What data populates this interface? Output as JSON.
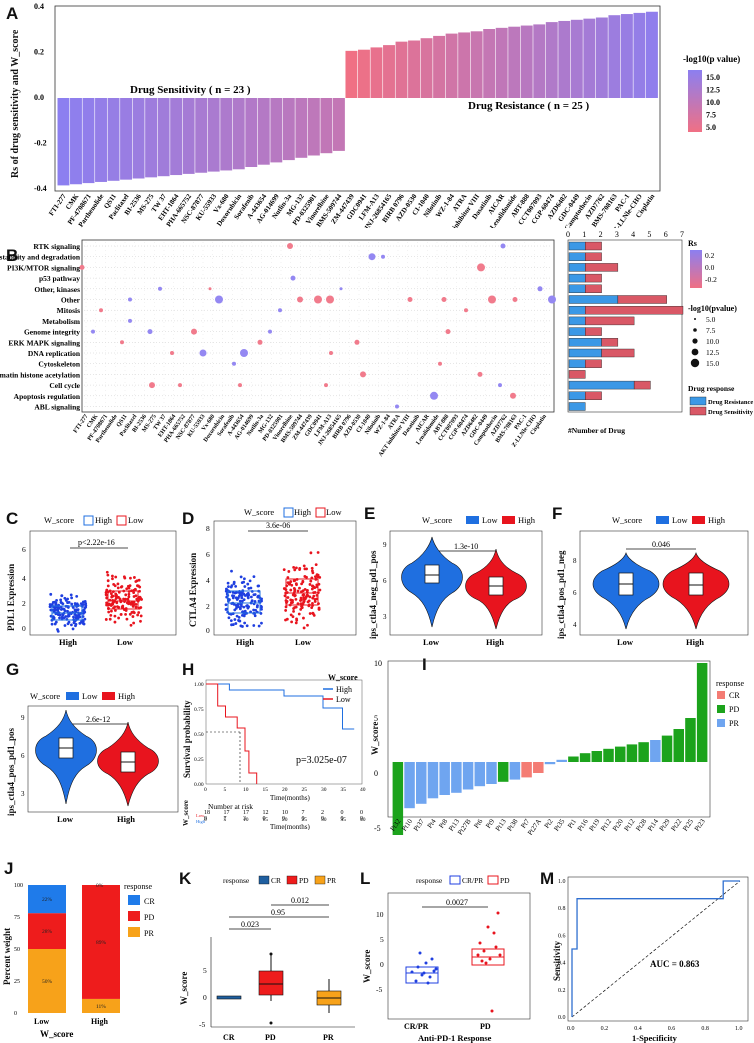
{
  "colors": {
    "sens": "#8c7ff0",
    "res": "#f07084",
    "high_blue": "#1f6fe0",
    "low_red": "#e8141e",
    "cr": "#1f7bea",
    "pd": "#ee1c1c",
    "pr": "#f7a21a",
    "green": "#1ca31c",
    "blue2": "#6fa5f0",
    "salmon": "#f47c74"
  },
  "panelA": {
    "label": "A",
    "ylabel": "Rs of drug sensitivity and W_score",
    "sens_text": "Drug Sensitivity ( n = 23 )",
    "res_text": "Drug Resistance ( n = 25 )",
    "legend_title": "-log10(p value)",
    "legend_ticks": [
      "15.0",
      "12.5",
      "10.0",
      "7.5",
      "5.0"
    ],
    "yticks": [
      "0.4",
      "0.2",
      "0.0",
      "-0.2",
      "-0.4"
    ]
  },
  "panelB": {
    "label": "B",
    "bar_axis_ticks": [
      "0",
      "1",
      "2",
      "3",
      "4",
      "5",
      "6",
      "7"
    ],
    "bar_axis_label": "#Number of Drug",
    "legend_rs_title": "Rs",
    "legend_rs_ticks": [
      "0.2",
      "0.0",
      "-0.2"
    ],
    "legend_p_title": "-log10(pvalue)",
    "legend_p_ticks": [
      "5.0",
      "7.5",
      "10.0",
      "12.5",
      "15.0"
    ],
    "legend_resp_title": "Drug response",
    "legend_resp": [
      "Drug Resistance",
      "Drug Sensitivity"
    ]
  },
  "panelC": {
    "label": "C",
    "legend_title": "W_score",
    "legend": [
      "High",
      "Low"
    ],
    "ylabel": "PDL1 Expression",
    "pval": "p<2.22e-16",
    "xticks": [
      "High",
      "Low"
    ],
    "yticks": [
      "0",
      "2",
      "4",
      "6"
    ]
  },
  "panelD": {
    "label": "D",
    "legend_title": "W_score",
    "legend": [
      "High",
      "Low"
    ],
    "ylabel": "CTLA4 Expression",
    "pval": "3.6e-06",
    "xticks": [
      "High",
      "Low"
    ],
    "yticks": [
      "0",
      "2",
      "4",
      "6",
      "8"
    ]
  },
  "panelE": {
    "label": "E",
    "legend_title": "W_score",
    "legend": [
      "Low",
      "High"
    ],
    "ylabel": "ips_ctla4_neg_pd1_pos",
    "pval": "1.3e-10",
    "xticks": [
      "Low",
      "High"
    ],
    "yticks": [
      "9",
      "6",
      "3"
    ]
  },
  "panelF": {
    "label": "F",
    "legend_title": "W_score",
    "legend": [
      "Low",
      "High"
    ],
    "ylabel": "ips_ctla4_pos_pd1_neg",
    "pval": "0.046",
    "xticks": [
      "Low",
      "High"
    ],
    "yticks": [
      "8",
      "6",
      "4"
    ]
  },
  "panelG": {
    "label": "G",
    "legend_title": "W_score",
    "legend": [
      "Low",
      "High"
    ],
    "ylabel": "ips_ctla4_pos_pd1_pos",
    "pval": "2.6e-12",
    "xticks": [
      "Low",
      "High"
    ],
    "yticks": [
      "9",
      "6",
      "3"
    ]
  },
  "panelH": {
    "label": "H",
    "legend_title": "W_score",
    "legend": [
      "High",
      "Low"
    ],
    "ylabel": "Survival probability",
    "pval": "p=3.025e-07",
    "xlabel": "Time(months)",
    "risk_title": "Number at risk",
    "yticks": [
      "1.00",
      "0.75",
      "0.50",
      "0.25",
      "0.00"
    ],
    "xticks": [
      "0",
      "5",
      "10",
      "15",
      "20",
      "25",
      "30",
      "35",
      "40"
    ],
    "risk_high": [
      "18",
      "17",
      "17",
      "12",
      "10",
      "7",
      "2",
      "0",
      "0"
    ],
    "risk_low": [
      "9",
      "7",
      "3",
      "0",
      "0",
      "0",
      "0",
      "0",
      "0"
    ],
    "risk_ylabel": "W_score",
    "risk_rows": [
      "Low",
      "High"
    ]
  },
  "panelI": {
    "label": "I",
    "ylabel": "W_score",
    "legend_title": "response",
    "legend": [
      "CR",
      "PD",
      "PR"
    ],
    "yticks": [
      "10",
      "5",
      "0",
      "-5"
    ],
    "patients": [
      "Pt32",
      "Pt10",
      "Pt37",
      "Pt4",
      "Pt8",
      "Pt13",
      "Pt27B",
      "Pt6",
      "Pt9",
      "Pt13",
      "Pt38",
      "Pt7",
      "Pt27A",
      "Pt2",
      "Pt35",
      "Pt1",
      "Pt16",
      "Pt19",
      "Pt12",
      "Pt20",
      "Pt12",
      "Pt28",
      "Pt14",
      "Pt29",
      "Pt22",
      "Pt25",
      "Pt23"
    ]
  },
  "panelJ": {
    "label": "J",
    "ylabel": "Percent weight",
    "xlabel": "W_score",
    "xticks": [
      "Low",
      "High"
    ],
    "yticks": [
      "100",
      "75",
      "50",
      "25",
      "0"
    ],
    "legend_title": "response",
    "legend": [
      "CR",
      "PD",
      "PR"
    ],
    "low_labels": [
      "22%",
      "28%",
      "50%"
    ],
    "high_labels": [
      "0%",
      "89%",
      "11%"
    ]
  },
  "panelK": {
    "label": "K",
    "legend_title": "response",
    "legend": [
      "CR",
      "PD",
      "PR"
    ],
    "ylabel": "W_score",
    "xticks": [
      "CR",
      "PD",
      "PR"
    ],
    "yticks": [
      "5",
      "0",
      "-5"
    ],
    "pvals": [
      "0.012",
      "0.95",
      "0.023"
    ]
  },
  "panelL": {
    "label": "L",
    "legend_title": "response",
    "legend": [
      "CR/PR",
      "PD"
    ],
    "ylabel": "W_score",
    "xlabel": "Anti-PD-1 Response",
    "xticks": [
      "CR/PR",
      "PD"
    ],
    "yticks": [
      "10",
      "5",
      "0",
      "-5"
    ],
    "pval": "0.0027"
  },
  "panelM": {
    "label": "M",
    "ylabel": "Sensitivity",
    "xlabel": "1-Specificity",
    "auc": "AUC = 0.863",
    "xticks": [
      "0.0",
      "0.2",
      "0.4",
      "0.6",
      "0.8",
      "1.0"
    ],
    "yticks": [
      "1.0",
      "0.8",
      "0.6",
      "0.4",
      "0.2",
      "0.0"
    ]
  },
  "chart_data": [
    {
      "type": "bar",
      "panel": "A",
      "title": "",
      "ylabel": "Rs of drug sensitivity and W_score",
      "ylim": [
        -0.4,
        0.4
      ],
      "categories": [
        "FTI-277",
        "CMK",
        "PF-4708671",
        "Parthenolide",
        "QS11",
        "Paclitaxel",
        "BI-2536",
        "MS-275",
        "TW 37",
        "EHT-1864",
        "PHA-665752",
        "NSC-87877",
        "KU-55933",
        "Vx-680",
        "Doxorubicin",
        "Sorafenib",
        "A-443654",
        "AG-014699",
        "Nutlin-3a",
        "MG-132",
        "PD-0325901",
        "Vinorelbine",
        "BMS-509744",
        "ZM-447439",
        "GDC0941",
        "LFM-A13",
        "JNJ-26854165",
        "BIRB 0796",
        "AZD-0530",
        "CI-1040",
        "Nilotinib",
        "WZ-1-84",
        "ATRA",
        "AKT inhibitor VIII",
        "Dasatinib",
        "AICAR",
        "Lenalidomide",
        "ABT-888",
        "CCT007093",
        "CGP-60474",
        "AZD6482",
        "GDC-0449",
        "Camptothecin",
        "AZD7762",
        "BMS-708163",
        "PAC-1",
        "Z-LLNle-CHO",
        "Cisplatin"
      ],
      "values": [
        -0.38,
        -0.375,
        -0.37,
        -0.365,
        -0.36,
        -0.355,
        -0.35,
        -0.345,
        -0.34,
        -0.335,
        -0.33,
        -0.325,
        -0.32,
        -0.315,
        -0.31,
        -0.3,
        -0.29,
        -0.28,
        -0.27,
        -0.26,
        -0.25,
        -0.24,
        -0.23,
        0.205,
        0.21,
        0.22,
        0.23,
        0.245,
        0.25,
        0.26,
        0.27,
        0.28,
        0.285,
        0.29,
        0.3,
        0.305,
        0.31,
        0.315,
        0.32,
        0.33,
        0.335,
        0.34,
        0.345,
        0.35,
        0.36,
        0.365,
        0.37,
        0.375
      ]
    },
    {
      "type": "bar",
      "panel": "B",
      "title": "Number of drugs per pathway",
      "categories": [
        "RTK signaling",
        "Protein stability and degradation",
        "PI3K/MTOR signaling",
        "p53 pathway",
        "Other, kinases",
        "Other",
        "Mitosis",
        "Metabolism",
        "Genome integrity",
        "ERK MAPK signaling",
        "DNA replication",
        "Cytoskeleton",
        "Chromatin histone acetylation",
        "Cell cycle",
        "Apoptosis regulation",
        "ABL signaling"
      ],
      "series": [
        {
          "name": "Drug Resistance",
          "values": [
            1,
            1,
            1,
            1,
            1,
            3,
            1,
            1,
            1,
            2,
            2,
            1,
            0,
            4,
            1,
            1
          ]
        },
        {
          "name": "Drug Sensitivity",
          "values": [
            1,
            1,
            2,
            1,
            1,
            3,
            6,
            3,
            1,
            1,
            2,
            1,
            1,
            1,
            1,
            0
          ]
        }
      ],
      "xlim": [
        0,
        7
      ]
    },
    {
      "type": "scatter",
      "panel": "B",
      "title": "Drug-pathway dot plot",
      "points": [
        {
          "y": "RTK signaling",
          "x": "Vinorelbine",
          "rs": 0.25,
          "size": 7.5
        },
        {
          "y": "RTK signaling",
          "x": "AZD6482",
          "rs": 0.25,
          "size": 5
        },
        {
          "y": "Protein stability and degradation",
          "x": "MG-132",
          "rs": -0.1,
          "size": 7.5
        },
        {
          "y": "Protein stability and degradation",
          "x": "Nutlin-3a",
          "rs": 0.3,
          "size": 5
        },
        {
          "y": "PI3K/MTOR signaling",
          "x": "A-443654",
          "rs": -0.3,
          "size": 5
        },
        {
          "y": "PI3K/MTOR signaling",
          "x": "PF-4708671",
          "rs": -0.35,
          "size": 12.5
        },
        {
          "y": "Other, kinases",
          "x": "AZD-0530",
          "rs": -0.2,
          "size": 10
        },
        {
          "y": "Other, kinases",
          "x": "CCT007093",
          "rs": 0.35,
          "size": 12.5
        },
        {
          "y": "Other",
          "x": "Dasatinib",
          "rs": -0.3,
          "size": 15
        },
        {
          "y": "Other",
          "x": "ATRA",
          "rs": 0.3,
          "size": 12.5
        },
        {
          "y": "Mitosis",
          "x": "Nilotinib",
          "rs": -0.35,
          "size": 5
        },
        {
          "y": "Genome integrity",
          "x": "CMK",
          "rs": 0.3,
          "size": 7.5
        },
        {
          "y": "ERK MAPK signaling",
          "x": "FTI-277",
          "rs": -0.25,
          "size": 5
        },
        {
          "y": "DNA replication",
          "x": "Doxorubicin",
          "rs": 0.3,
          "size": 10
        },
        {
          "y": "Chromatin histone acetylation",
          "x": "Sorafenib",
          "rs": -0.3,
          "size": 10
        },
        {
          "y": "Cell cycle",
          "x": "BI-2536",
          "rs": -0.2,
          "size": 10
        },
        {
          "y": "Apoptosis regulation",
          "x": "TW 37",
          "rs": 0.3,
          "size": 12.5
        },
        {
          "y": "ABL signaling",
          "x": "Nilotinib",
          "rs": 0.3,
          "size": 5
        }
      ]
    },
    {
      "type": "line",
      "panel": "H",
      "title": "Kaplan-Meier survival",
      "xlabel": "Time(months)",
      "ylabel": "Survival probability",
      "xlim": [
        0,
        40
      ],
      "ylim": [
        0,
        1
      ],
      "series": [
        {
          "name": "High",
          "x": [
            0,
            6,
            10,
            15,
            20,
            27,
            30,
            33,
            35
          ],
          "y": [
            1.0,
            0.94,
            0.94,
            0.94,
            0.88,
            0.88,
            0.76,
            0.76,
            0.55
          ]
        },
        {
          "name": "Low",
          "x": [
            0,
            3,
            5,
            8,
            10,
            11,
            13
          ],
          "y": [
            1.0,
            0.78,
            0.67,
            0.56,
            0.33,
            0.11,
            0.0
          ]
        }
      ]
    },
    {
      "type": "bar",
      "panel": "I",
      "title": "Waterfall W_score",
      "categories": [
        "Pt32",
        "Pt10",
        "Pt37",
        "Pt4",
        "Pt8",
        "Pt13",
        "Pt27B",
        "Pt6",
        "Pt9",
        "Pt13",
        "Pt38",
        "Pt7",
        "Pt27A",
        "Pt2",
        "Pt35",
        "Pt1",
        "Pt16",
        "Pt19",
        "Pt12",
        "Pt20",
        "Pt12",
        "Pt28",
        "Pt14",
        "Pt29",
        "Pt22",
        "Pt25",
        "Pt23"
      ],
      "values": [
        -8.5,
        -4.2,
        -3.8,
        -3.3,
        -3.0,
        -2.8,
        -2.5,
        -2.2,
        -2.0,
        -1.8,
        -1.6,
        -1.4,
        -1.0,
        -0.2,
        0.2,
        0.5,
        0.8,
        1.0,
        1.2,
        1.4,
        1.6,
        1.8,
        2.0,
        2.4,
        3.0,
        4.0,
        9.0
      ],
      "response": [
        "PD",
        "PR",
        "PR",
        "PR",
        "PR",
        "PR",
        "PR",
        "PR",
        "PR",
        "PD",
        "PR",
        "CR",
        "CR",
        "PR",
        "PR",
        "PD",
        "PD",
        "PD",
        "PD",
        "PD",
        "PD",
        "PD",
        "PR",
        "PD",
        "PD",
        "PD",
        "PD"
      ]
    },
    {
      "type": "bar",
      "panel": "J",
      "title": "Response proportions",
      "categories": [
        "Low",
        "High"
      ],
      "series": [
        {
          "name": "CR",
          "values": [
            22,
            0
          ]
        },
        {
          "name": "PD",
          "values": [
            28,
            89
          ]
        },
        {
          "name": "PR",
          "values": [
            50,
            11
          ]
        }
      ],
      "ylim": [
        0,
        100
      ]
    },
    {
      "type": "line",
      "panel": "M",
      "title": "ROC",
      "xlabel": "1-Specificity",
      "ylabel": "Sensitivity",
      "x": [
        0,
        0,
        0.03,
        0.03,
        0.07,
        0.07,
        0.9,
        0.9,
        1.0
      ],
      "y": [
        0,
        0.5,
        0.5,
        0.87,
        0.87,
        0.87,
        0.87,
        1.0,
        1.0
      ],
      "auc": 0.863
    }
  ]
}
